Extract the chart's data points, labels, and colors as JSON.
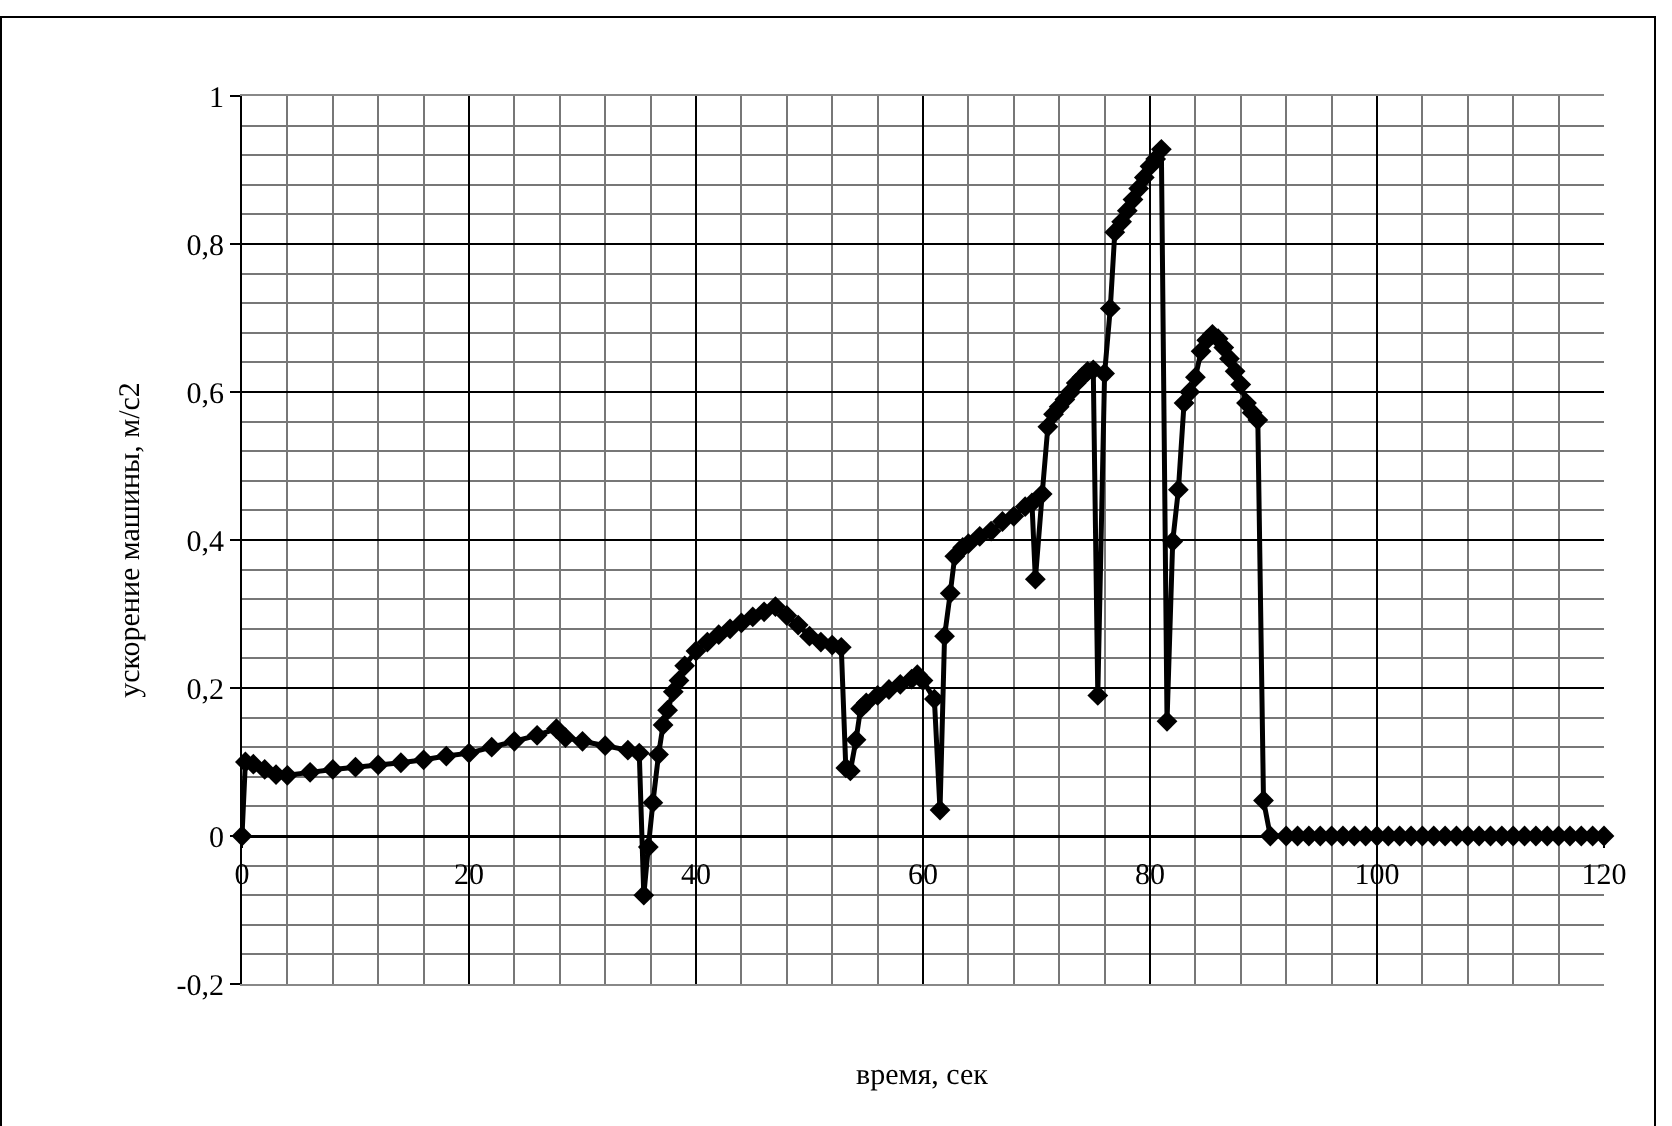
{
  "chart_data": {
    "type": "line",
    "xlabel": "время, сек",
    "ylabel": "ускорение машины, м/с2",
    "x": [
      0,
      0.3,
      1,
      2,
      3,
      4,
      6,
      8,
      10,
      12,
      14,
      16,
      18,
      20,
      22,
      24,
      26,
      27.7,
      28.5,
      30,
      32,
      34,
      35,
      35.4,
      35.8,
      36.2,
      36.7,
      37.1,
      37.5,
      38,
      38.5,
      39,
      40,
      41,
      42,
      43,
      44,
      45,
      46,
      47,
      48,
      49,
      50,
      51,
      52,
      52.8,
      53.2,
      53.6,
      54.1,
      54.5,
      55,
      56,
      57,
      58,
      59,
      59.5,
      60,
      61,
      61.5,
      61.9,
      62.4,
      62.8,
      63.5,
      64,
      65,
      66,
      67,
      68,
      69,
      69.6,
      69.9,
      70.5,
      71,
      71.5,
      72,
      72.5,
      73,
      73.5,
      74,
      74.5,
      75,
      75.4,
      76,
      76.5,
      76.9,
      77.5,
      78,
      78.5,
      79,
      79.5,
      80,
      80.5,
      81,
      81.5,
      82,
      82.5,
      83,
      83.5,
      84,
      84.5,
      85,
      85.5,
      86,
      86.5,
      87,
      87.5,
      88,
      88.5,
      89,
      89.5,
      90,
      90.6,
      92,
      93,
      94,
      95,
      96,
      97,
      98,
      99,
      100,
      101,
      102,
      103,
      104,
      105,
      106,
      107,
      108,
      109,
      110,
      111,
      112,
      113,
      114,
      115,
      116,
      117,
      118,
      119,
      120
    ],
    "series": [
      {
        "color": "#000000",
        "values": [
          0,
          0.1,
          0.097,
          0.09,
          0.083,
          0.082,
          0.086,
          0.09,
          0.093,
          0.096,
          0.099,
          0.103,
          0.108,
          0.112,
          0.12,
          0.128,
          0.136,
          0.145,
          0.133,
          0.128,
          0.122,
          0.116,
          0.112,
          -0.08,
          -0.015,
          0.045,
          0.11,
          0.15,
          0.17,
          0.195,
          0.21,
          0.23,
          0.25,
          0.262,
          0.272,
          0.28,
          0.288,
          0.296,
          0.303,
          0.31,
          0.298,
          0.285,
          0.27,
          0.262,
          0.258,
          0.255,
          0.092,
          0.088,
          0.13,
          0.172,
          0.18,
          0.19,
          0.198,
          0.205,
          0.212,
          0.218,
          0.21,
          0.185,
          0.035,
          0.27,
          0.328,
          0.378,
          0.39,
          0.395,
          0.405,
          0.412,
          0.425,
          0.432,
          0.445,
          0.45,
          0.347,
          0.462,
          0.553,
          0.57,
          0.58,
          0.59,
          0.6,
          0.612,
          0.62,
          0.628,
          0.63,
          0.19,
          0.625,
          0.713,
          0.816,
          0.83,
          0.845,
          0.86,
          0.875,
          0.89,
          0.905,
          0.915,
          0.928,
          0.155,
          0.398,
          0.468,
          0.585,
          0.6,
          0.62,
          0.655,
          0.67,
          0.678,
          0.672,
          0.66,
          0.645,
          0.628,
          0.61,
          0.585,
          0.572,
          0.562,
          0.048,
          0,
          0,
          0,
          0,
          0,
          0,
          0,
          0,
          0,
          0,
          0,
          0,
          0,
          0,
          0,
          0,
          0,
          0,
          0,
          0,
          0,
          0,
          0,
          0,
          0,
          0,
          0,
          0,
          0,
          0
        ]
      }
    ],
    "xlim": [
      0,
      120
    ],
    "xticks": [
      0,
      20,
      40,
      60,
      80,
      100,
      120
    ],
    "ylim": [
      -0.2,
      1
    ],
    "yticks": [
      {
        "value": -0.2,
        "label": "-0,2"
      },
      0,
      {
        "value": 0.2,
        "label": "0,2"
      },
      {
        "value": 0.4,
        "label": "0,4"
      },
      {
        "value": 0.6,
        "label": "0,6"
      },
      {
        "value": 0.8,
        "label": "0,8"
      },
      1
    ],
    "grid": true,
    "marker": "diamond",
    "line_style": "solid"
  }
}
